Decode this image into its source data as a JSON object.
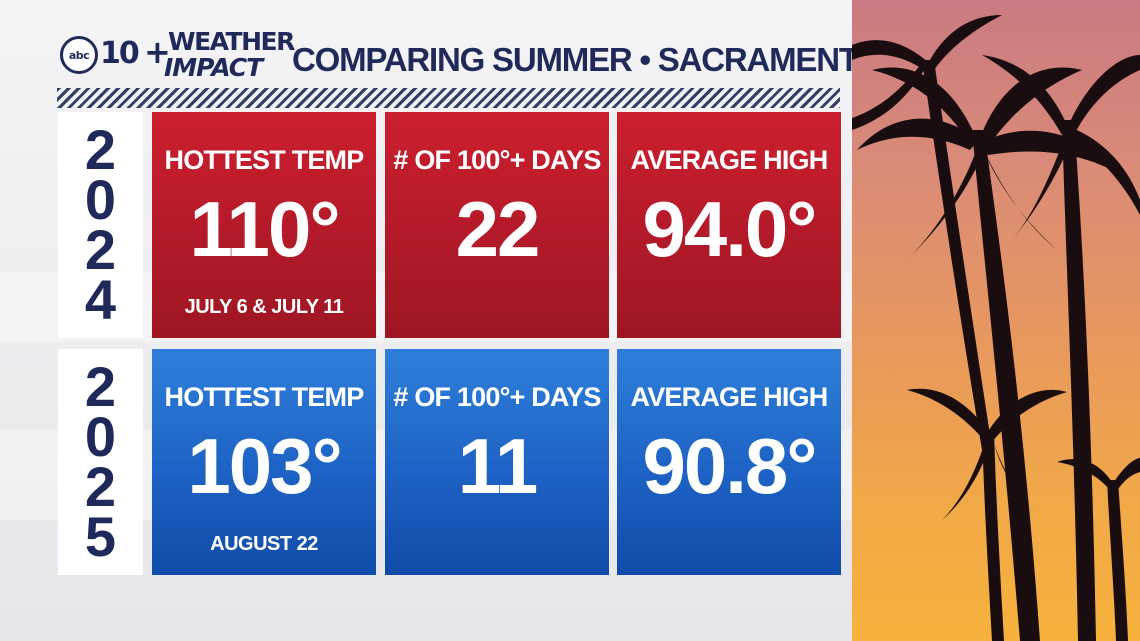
{
  "brand": {
    "circle": "abc",
    "number": "10",
    "plus": "+",
    "line1": "WEATHER",
    "line2": "IMPACT"
  },
  "title": "COMPARING SUMMER • SACRAMENTO",
  "rows": [
    {
      "year_digits": [
        "2",
        "0",
        "2",
        "4"
      ],
      "cards": [
        {
          "label": "HOTTEST TEMP",
          "value": "110°",
          "sub": "JULY 6 & JULY 11"
        },
        {
          "label": "# OF 100°+ DAYS",
          "value": "22",
          "sub": ""
        },
        {
          "label": "AVERAGE HIGH",
          "value": "94.0°",
          "sub": ""
        }
      ]
    },
    {
      "year_digits": [
        "2",
        "0",
        "2",
        "5"
      ],
      "cards": [
        {
          "label": "HOTTEST TEMP",
          "value": "103°",
          "sub": "AUGUST 22"
        },
        {
          "label": "# OF 100°+ DAYS",
          "value": "11",
          "sub": ""
        },
        {
          "label": "AVERAGE HIGH",
          "value": "90.8°",
          "sub": ""
        }
      ]
    }
  ],
  "colors": {
    "navy": "#1f2a5a",
    "row_2024": "#b31a29",
    "row_2025": "#1d62c4"
  },
  "photo": {
    "subject": "palm-trees-sunset"
  }
}
